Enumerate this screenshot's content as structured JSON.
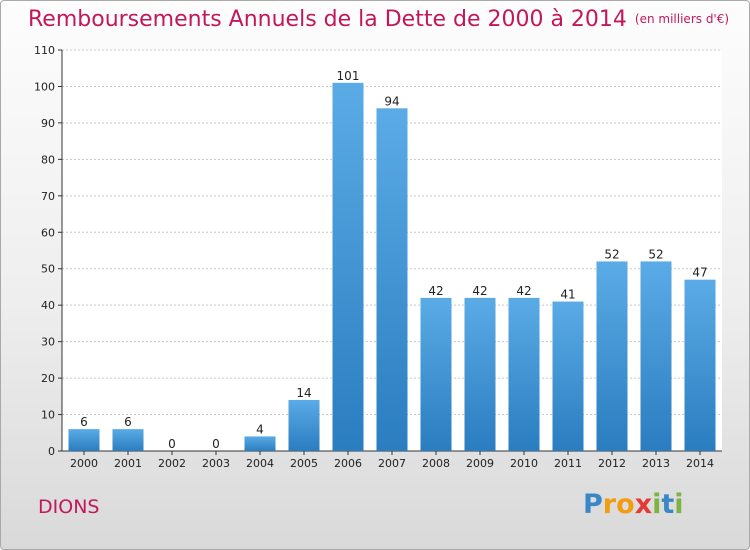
{
  "title": "Remboursements Annuels de la Dette de 2000 à 2014",
  "subtitle": "(en milliers d'€)",
  "commune": "DIONS",
  "brand": {
    "letters": [
      "P",
      "r",
      "o",
      "x",
      "i",
      "t",
      "i"
    ],
    "colors": [
      "#3a87c8",
      "#f39c12",
      "#f39c12",
      "#e53935",
      "#7cb342",
      "#3a87c8",
      "#7cb342"
    ]
  },
  "colors": {
    "title": "#c2185b",
    "bar_light": "#5aabe6",
    "bar_dark": "#2a7dbf",
    "grid": "#c8c8c8",
    "axis": "#333333"
  },
  "chart_data": {
    "type": "bar",
    "categories": [
      "2000",
      "2001",
      "2002",
      "2003",
      "2004",
      "2005",
      "2006",
      "2007",
      "2008",
      "2009",
      "2010",
      "2011",
      "2012",
      "2013",
      "2014"
    ],
    "values": [
      6,
      6,
      0,
      0,
      4,
      14,
      101,
      94,
      42,
      42,
      42,
      41,
      52,
      52,
      47
    ],
    "ylim": [
      0,
      110
    ],
    "yticks": [
      0,
      10,
      20,
      30,
      40,
      50,
      60,
      70,
      80,
      90,
      100,
      110
    ],
    "grid": true,
    "title": "Remboursements Annuels de la Dette de 2000 à 2014",
    "xlabel": "",
    "ylabel": ""
  }
}
